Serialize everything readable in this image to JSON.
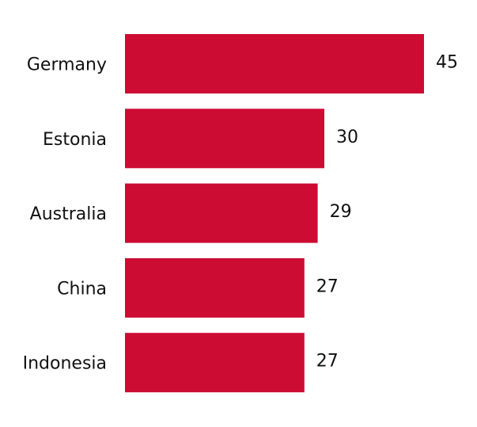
{
  "chart_data": {
    "type": "bar",
    "orientation": "horizontal",
    "categories": [
      "Germany",
      "Estonia",
      "Australia",
      "China",
      "Indonesia"
    ],
    "values": [
      45,
      30,
      29,
      27,
      27
    ],
    "color": "#cc0c33"
  }
}
